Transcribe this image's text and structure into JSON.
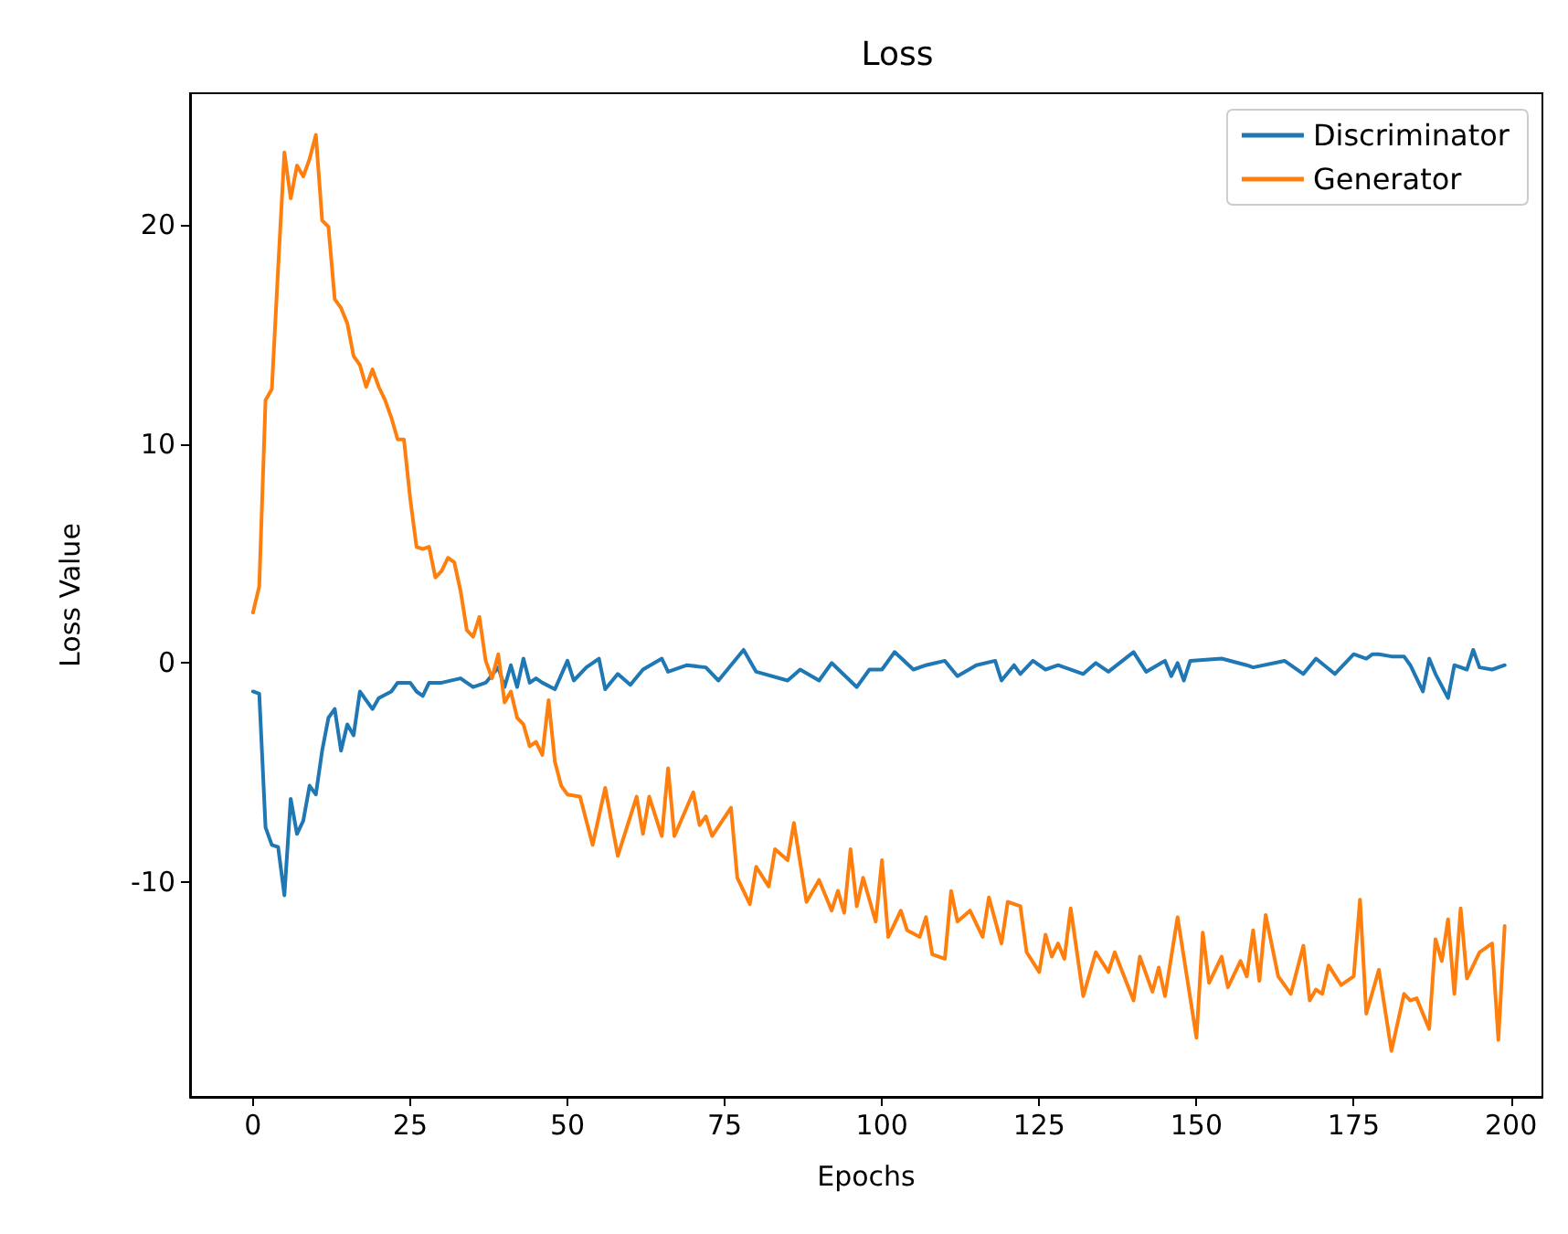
{
  "chart_data": {
    "type": "line",
    "title": "Loss",
    "xlabel": "Epochs",
    "ylabel": "Loss Value",
    "xlim": [
      -10,
      205
    ],
    "ylim": [
      -19.8,
      26
    ],
    "xticks": [
      0,
      25,
      50,
      75,
      100,
      125,
      150,
      175,
      200
    ],
    "yticks": [
      -10,
      0,
      10,
      20
    ],
    "grid": false,
    "legend": "top right",
    "marker": "none",
    "line_style": "solid",
    "series": [
      {
        "name": "Discriminator",
        "color": "#1f77b4",
        "x": [
          0,
          1,
          2,
          3,
          4,
          5,
          6,
          7,
          8,
          9,
          10,
          11,
          12,
          13,
          14,
          15,
          16,
          17,
          18,
          19,
          20,
          22,
          23,
          25,
          26,
          27,
          28,
          30,
          33,
          35,
          37,
          39,
          40,
          41,
          42,
          43,
          44,
          45,
          46,
          48,
          50,
          51,
          53,
          55,
          56,
          58,
          60,
          62,
          65,
          66,
          69,
          72,
          74,
          78,
          80,
          85,
          87,
          90,
          92,
          96,
          98,
          100,
          102,
          105,
          107,
          110,
          112,
          115,
          118,
          119,
          121,
          122,
          124,
          126,
          128,
          132,
          134,
          136,
          140,
          142,
          145,
          146,
          147,
          148,
          149,
          154,
          158,
          159,
          164,
          167,
          169,
          172,
          175,
          177,
          178,
          179,
          181,
          183,
          184,
          186,
          187,
          188,
          190,
          191,
          193,
          194,
          195,
          197,
          199
        ],
        "values": [
          -1.3,
          -1.4,
          -7.5,
          -8.3,
          -8.4,
          -10.6,
          -6.2,
          -7.8,
          -7.2,
          -5.6,
          -6.0,
          -4.0,
          -2.5,
          -2.1,
          -4.0,
          -2.8,
          -3.3,
          -1.3,
          -1.7,
          -2.1,
          -1.6,
          -1.3,
          -0.9,
          -0.9,
          -1.3,
          -1.5,
          -0.9,
          -0.9,
          -0.7,
          -1.1,
          -0.9,
          -0.2,
          -1.1,
          -0.1,
          -1.1,
          0.2,
          -0.9,
          -0.7,
          -0.9,
          -1.2,
          0.1,
          -0.8,
          -0.2,
          0.2,
          -1.2,
          -0.5,
          -1.0,
          -0.3,
          0.2,
          -0.4,
          -0.1,
          -0.2,
          -0.8,
          0.6,
          -0.4,
          -0.8,
          -0.3,
          -0.8,
          0.0,
          -1.1,
          -0.3,
          -0.3,
          0.5,
          -0.3,
          -0.1,
          0.1,
          -0.6,
          -0.1,
          0.1,
          -0.8,
          -0.1,
          -0.5,
          0.1,
          -0.3,
          -0.1,
          -0.5,
          0.0,
          -0.4,
          0.5,
          -0.4,
          0.1,
          -0.6,
          0.0,
          -0.8,
          0.1,
          0.2,
          -0.1,
          -0.2,
          0.1,
          -0.5,
          0.2,
          -0.5,
          0.4,
          0.2,
          0.4,
          0.4,
          0.3,
          0.3,
          -0.1,
          -1.3,
          0.2,
          -0.5,
          -1.6,
          -0.1,
          -0.3,
          0.6,
          -0.2,
          -0.3,
          -0.1
        ]
      },
      {
        "name": "Generator",
        "color": "#ff7f0e",
        "x": [
          0,
          1,
          2,
          3,
          4,
          5,
          6,
          7,
          8,
          9,
          10,
          11,
          12,
          13,
          14,
          15,
          16,
          17,
          18,
          19,
          20,
          21,
          22,
          23,
          24,
          25,
          26,
          27,
          28,
          29,
          30,
          31,
          32,
          33,
          34,
          35,
          36,
          37,
          38,
          39,
          40,
          41,
          42,
          43,
          44,
          45,
          46,
          47,
          48,
          49,
          50,
          52,
          54,
          56,
          58,
          61,
          62,
          63,
          65,
          66,
          67,
          70,
          71,
          72,
          73,
          76,
          77,
          79,
          80,
          82,
          83,
          85,
          86,
          88,
          90,
          92,
          93,
          94,
          95,
          96,
          97,
          99,
          100,
          101,
          103,
          104,
          106,
          107,
          108,
          110,
          111,
          112,
          114,
          116,
          117,
          119,
          120,
          122,
          123,
          125,
          126,
          127,
          128,
          129,
          130,
          132,
          134,
          136,
          137,
          140,
          141,
          143,
          144,
          145,
          147,
          150,
          151,
          152,
          154,
          155,
          157,
          158,
          159,
          160,
          161,
          163,
          165,
          167,
          168,
          169,
          170,
          171,
          173,
          175,
          176,
          177,
          179,
          181,
          183,
          184,
          185,
          187,
          188,
          189,
          190,
          191,
          192,
          193,
          195,
          197,
          198,
          199
        ],
        "values": [
          2.3,
          3.5,
          12,
          12.5,
          18,
          23.3,
          21.2,
          22.7,
          22.2,
          23,
          24.1,
          20.2,
          19.9,
          16.6,
          16.2,
          15.5,
          14,
          13.6,
          12.6,
          13.4,
          12.6,
          12,
          11.2,
          10.2,
          10.2,
          7.5,
          5.3,
          5.2,
          5.3,
          3.9,
          4.2,
          4.8,
          4.6,
          3.3,
          1.5,
          1.2,
          2.1,
          0.1,
          -0.7,
          0.4,
          -1.8,
          -1.3,
          -2.5,
          -2.8,
          -3.8,
          -3.6,
          -4.2,
          -1.7,
          -4.5,
          -5.6,
          -6.0,
          -6.1,
          -8.3,
          -5.7,
          -8.8,
          -6.1,
          -7.8,
          -6.1,
          -7.9,
          -4.8,
          -7.9,
          -5.9,
          -7.4,
          -7.0,
          -7.9,
          -6.6,
          -9.8,
          -11,
          -9.3,
          -10.2,
          -8.5,
          -9,
          -7.3,
          -10.9,
          -9.9,
          -11.3,
          -10.4,
          -11.4,
          -8.5,
          -11.1,
          -9.8,
          -11.8,
          -9,
          -12.5,
          -11.3,
          -12.2,
          -12.5,
          -11.6,
          -13.3,
          -13.5,
          -10.4,
          -11.8,
          -11.3,
          -12.5,
          -10.7,
          -12.8,
          -10.9,
          -11.1,
          -13.2,
          -14.1,
          -12.4,
          -13.4,
          -12.8,
          -13.5,
          -11.2,
          -15.2,
          -13.2,
          -14.1,
          -13.2,
          -15.4,
          -13.4,
          -15,
          -13.9,
          -15.2,
          -11.6,
          -17.1,
          -12.3,
          -14.6,
          -13.4,
          -14.8,
          -13.6,
          -14.3,
          -12.2,
          -14.5,
          -11.5,
          -14.3,
          -15.1,
          -12.9,
          -15.4,
          -14.9,
          -15.1,
          -13.8,
          -14.7,
          -14.3,
          -10.8,
          -16,
          -14,
          -17.7,
          -15.1,
          -15.4,
          -15.3,
          -16.7,
          -12.6,
          -13.6,
          -11.7,
          -15.1,
          -11.2,
          -14.4,
          -13.2,
          -12.8,
          -17.2,
          -12
        ]
      }
    ]
  }
}
